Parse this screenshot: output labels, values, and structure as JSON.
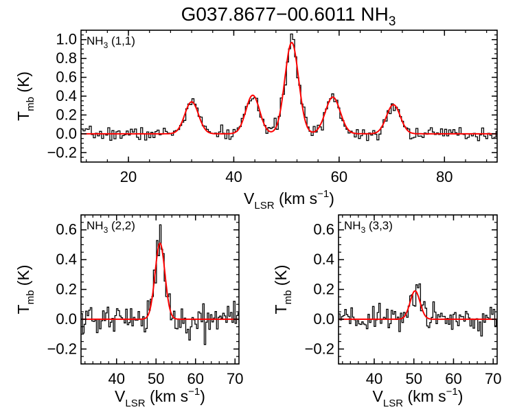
{
  "figure": {
    "title_main": "G037.8677−00.6011 NH",
    "title_sub": "3"
  },
  "axis_text": {
    "ylabel_main": "T",
    "ylabel_sub": "mb",
    "ylabel_unit": " (K)",
    "xlabel_main": "V",
    "xlabel_sub": "LSR",
    "xlabel_unit": " (km s",
    "xlabel_sup": "−1",
    "xlabel_close": ")"
  },
  "colors": {
    "data": "#000000",
    "fit": "#ff0000",
    "axes": "#000000"
  },
  "chart_data": [
    {
      "type": "line",
      "panel": "top",
      "label_main": "NH",
      "label_sub": "3",
      "label_rest": " (1,1)",
      "xlim": [
        11,
        90
      ],
      "ylim": [
        -0.3,
        1.1
      ],
      "xticks": [
        20,
        40,
        60,
        80
      ],
      "xtick_labels": [
        "20",
        "40",
        "60",
        "80"
      ],
      "yticks": [
        -0.2,
        0.0,
        0.2,
        0.4,
        0.6,
        0.8,
        1.0
      ],
      "ytick_labels": [
        "−0.2",
        "0.0",
        "0.2",
        "0.4",
        "0.6",
        "0.8",
        "1.0"
      ],
      "fit_components": [
        {
          "center": 32.0,
          "amplitude": 0.34,
          "sigma": 1.3
        },
        {
          "center": 43.6,
          "amplitude": 0.41,
          "sigma": 1.3
        },
        {
          "center": 51.0,
          "amplitude": 0.97,
          "sigma": 1.3
        },
        {
          "center": 58.8,
          "amplitude": 0.39,
          "sigma": 1.4
        },
        {
          "center": 70.3,
          "amplitude": 0.31,
          "sigma": 1.3
        }
      ],
      "channel_width": 0.39,
      "noise_rms": 0.035,
      "noise_seed": 7,
      "series": [
        {
          "name": "observed spectrum (histogram)",
          "color": "#000000"
        },
        {
          "name": "hyperfine fit",
          "color": "#ff0000"
        }
      ]
    },
    {
      "type": "line",
      "panel": "bottom-left",
      "label_main": "NH",
      "label_sub": "3",
      "label_rest": " (2,2)",
      "xlim": [
        31,
        71
      ],
      "ylim": [
        -0.3,
        0.7
      ],
      "xticks": [
        40,
        50,
        60,
        70
      ],
      "xtick_labels": [
        "40",
        "50",
        "60",
        "70"
      ],
      "yticks": [
        -0.2,
        0.0,
        0.2,
        0.4,
        0.6
      ],
      "ytick_labels": [
        "−0.2",
        "0.0",
        "0.2",
        "0.4",
        "0.6"
      ],
      "fit_components": [
        {
          "center": 51.0,
          "amplitude": 0.51,
          "sigma": 1.25
        }
      ],
      "channel_width": 0.39,
      "noise_rms": 0.055,
      "noise_seed": 21,
      "series": [
        {
          "name": "observed spectrum (histogram)",
          "color": "#000000"
        },
        {
          "name": "gaussian fit",
          "color": "#ff0000"
        }
      ]
    },
    {
      "type": "line",
      "panel": "bottom-right",
      "label_main": "NH",
      "label_sub": "3",
      "label_rest": " (3,3)",
      "xlim": [
        31,
        71
      ],
      "ylim": [
        -0.3,
        0.7
      ],
      "xticks": [
        40,
        50,
        60,
        70
      ],
      "xtick_labels": [
        "40",
        "50",
        "60",
        "70"
      ],
      "yticks": [
        -0.2,
        0.0,
        0.2,
        0.4,
        0.6
      ],
      "ytick_labels": [
        "−0.2",
        "0.0",
        "0.2",
        "0.4",
        "0.6"
      ],
      "fit_components": [
        {
          "center": 50.3,
          "amplitude": 0.19,
          "sigma": 1.25
        }
      ],
      "channel_width": 0.39,
      "noise_rms": 0.05,
      "noise_seed": 43,
      "series": [
        {
          "name": "observed spectrum (histogram)",
          "color": "#000000"
        },
        {
          "name": "gaussian fit",
          "color": "#ff0000"
        }
      ]
    }
  ]
}
